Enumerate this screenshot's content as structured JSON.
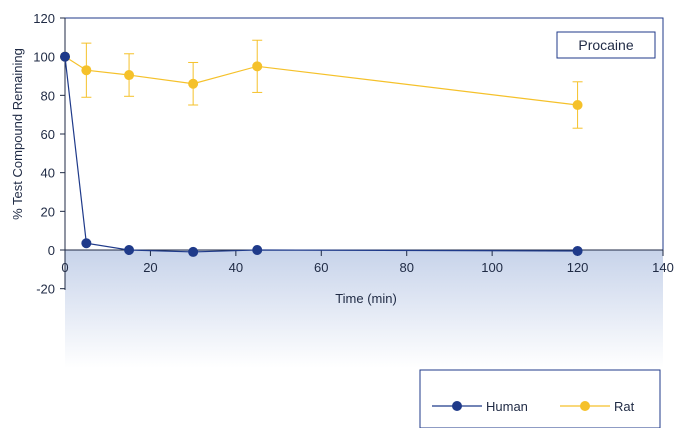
{
  "chart_data": {
    "type": "line",
    "xlabel": "Time (min)",
    "ylabel": "% Test Compound Remaining",
    "xlim": [
      0,
      140
    ],
    "ylim": [
      -20,
      120
    ],
    "x_ticks": [
      "0",
      "20",
      "40",
      "60",
      "80",
      "100",
      "120",
      "140"
    ],
    "y_ticks": [
      "120",
      "100",
      "80",
      "60",
      "40",
      "20",
      "0",
      "-20"
    ],
    "annotation": "Procaine",
    "legend_position": "bottom-right",
    "grid": false,
    "series": [
      {
        "name": "Human",
        "color": "#1f3a8a",
        "x": [
          0,
          5,
          15,
          30,
          45,
          120
        ],
        "y": [
          100,
          3.5,
          0,
          -1,
          0,
          -0.5
        ]
      },
      {
        "name": "Rat",
        "color": "#f5c12a",
        "x": [
          0,
          5,
          15,
          30,
          45,
          120
        ],
        "y": [
          100,
          93,
          90.5,
          86,
          95,
          75
        ],
        "error": [
          0,
          14,
          11,
          11,
          13.5,
          12
        ]
      }
    ]
  }
}
